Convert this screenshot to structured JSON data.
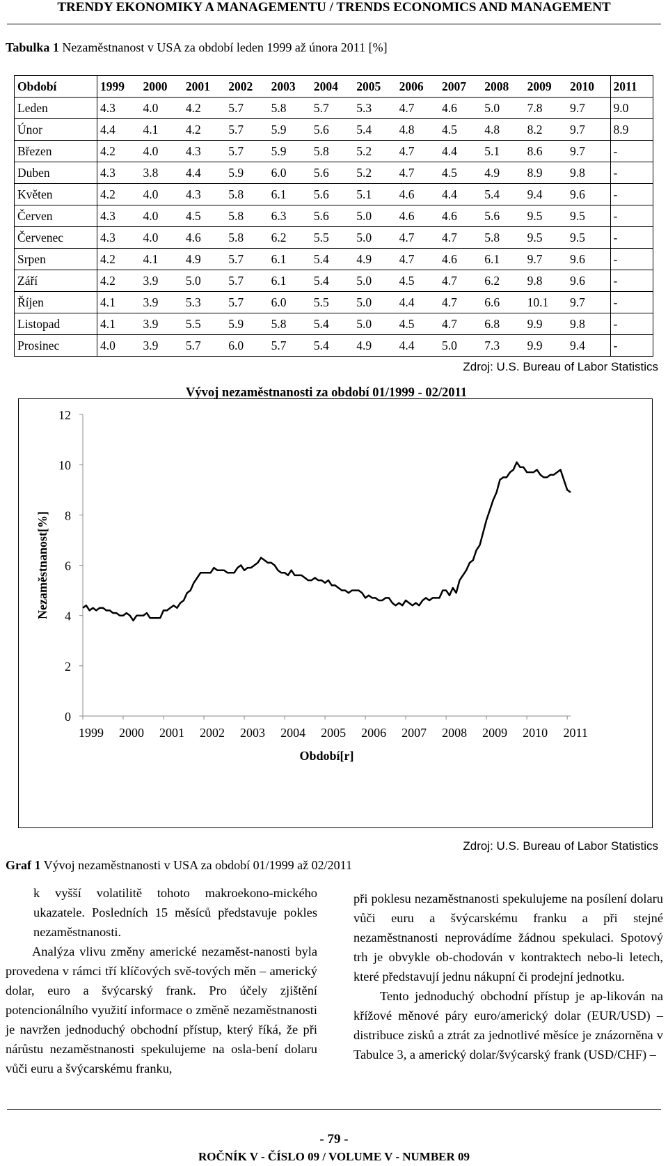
{
  "header": {
    "running_title": "TRENDY EKONOMIKY A MANAGEMENTU / TRENDS ECONOMICS AND MANAGEMENT"
  },
  "table": {
    "caption_label": "Tabulka 1",
    "caption_text": "Nezaměstnanost v USA za období leden 1999 až února 2011 [%]",
    "headers": [
      "Období",
      "1999",
      "2000",
      "2001",
      "2002",
      "2003",
      "2004",
      "2005",
      "2006",
      "2007",
      "2008",
      "2009",
      "2010",
      "2011"
    ],
    "rows": [
      [
        "Leden",
        "4.3",
        "4.0",
        "4.2",
        "5.7",
        "5.8",
        "5.7",
        "5.3",
        "4.7",
        "4.6",
        "5.0",
        "7.8",
        "9.7",
        "9.0"
      ],
      [
        "Únor",
        "4.4",
        "4.1",
        "4.2",
        "5.7",
        "5.9",
        "5.6",
        "5.4",
        "4.8",
        "4.5",
        "4.8",
        "8.2",
        "9.7",
        "8.9"
      ],
      [
        "Březen",
        "4.2",
        "4.0",
        "4.3",
        "5.7",
        "5.9",
        "5.8",
        "5.2",
        "4.7",
        "4.4",
        "5.1",
        "8.6",
        "9.7",
        "-"
      ],
      [
        "Duben",
        "4.3",
        "3.8",
        "4.4",
        "5.9",
        "6.0",
        "5.6",
        "5.2",
        "4.7",
        "4.5",
        "4.9",
        "8.9",
        "9.8",
        "-"
      ],
      [
        "Květen",
        "4.2",
        "4.0",
        "4.3",
        "5.8",
        "6.1",
        "5.6",
        "5.1",
        "4.6",
        "4.4",
        "5.4",
        "9.4",
        "9.6",
        "-"
      ],
      [
        "Červen",
        "4.3",
        "4.0",
        "4.5",
        "5.8",
        "6.3",
        "5.6",
        "5.0",
        "4.6",
        "4.6",
        "5.6",
        "9.5",
        "9.5",
        "-"
      ],
      [
        "Červenec",
        "4.3",
        "4.0",
        "4.6",
        "5.8",
        "6.2",
        "5.5",
        "5.0",
        "4.7",
        "4.7",
        "5.8",
        "9.5",
        "9.5",
        "-"
      ],
      [
        "Srpen",
        "4.2",
        "4.1",
        "4.9",
        "5.7",
        "6.1",
        "5.4",
        "4.9",
        "4.7",
        "4.6",
        "6.1",
        "9.7",
        "9.6",
        "-"
      ],
      [
        "Září",
        "4.2",
        "3.9",
        "5.0",
        "5.7",
        "6.1",
        "5.4",
        "5.0",
        "4.5",
        "4.7",
        "6.2",
        "9.8",
        "9.6",
        "-"
      ],
      [
        "Říjen",
        "4.1",
        "3.9",
        "5.3",
        "5.7",
        "6.0",
        "5.5",
        "5.0",
        "4.4",
        "4.7",
        "6.6",
        "10.1",
        "9.7",
        "-"
      ],
      [
        "Listopad",
        "4.1",
        "3.9",
        "5.5",
        "5.9",
        "5.8",
        "5.4",
        "5.0",
        "4.5",
        "4.7",
        "6.8",
        "9.9",
        "9.8",
        "-"
      ],
      [
        "Prosinec",
        "4.0",
        "3.9",
        "5.7",
        "6.0",
        "5.7",
        "5.4",
        "4.9",
        "4.4",
        "5.0",
        "7.3",
        "9.9",
        "9.4",
        "-"
      ]
    ],
    "source": "Zdroj: U.S. Bureau of Labor Statistics"
  },
  "chart_data": {
    "type": "line",
    "title": "Vývoj nezaměstnanosti za období 01/1999 - 02/2011",
    "xlabel": "Období[r]",
    "ylabel": "Nezaměstnanost[%]",
    "ylim": [
      0,
      12
    ],
    "yticks": [
      "0",
      "2",
      "4",
      "6",
      "8",
      "10",
      "12"
    ],
    "xticks": [
      "1999",
      "2000",
      "2001",
      "2002",
      "2003",
      "2004",
      "2005",
      "2006",
      "2007",
      "2008",
      "2009",
      "2010",
      "2011"
    ],
    "grid": false,
    "legend": "none",
    "line_color": "#000000",
    "series": [
      {
        "values": [
          4.3,
          4.4,
          4.2,
          4.3,
          4.2,
          4.3,
          4.3,
          4.2,
          4.2,
          4.1,
          4.1,
          4.0,
          4.0,
          4.1,
          4.0,
          3.8,
          4.0,
          4.0,
          4.0,
          4.1,
          3.9,
          3.9,
          3.9,
          3.9,
          4.2,
          4.2,
          4.3,
          4.4,
          4.3,
          4.5,
          4.6,
          4.9,
          5.0,
          5.3,
          5.5,
          5.7,
          5.7,
          5.7,
          5.7,
          5.9,
          5.8,
          5.8,
          5.8,
          5.7,
          5.7,
          5.7,
          5.9,
          6.0,
          5.8,
          5.9,
          5.9,
          6.0,
          6.1,
          6.3,
          6.2,
          6.1,
          6.1,
          6.0,
          5.8,
          5.7,
          5.7,
          5.6,
          5.8,
          5.6,
          5.6,
          5.6,
          5.5,
          5.4,
          5.4,
          5.5,
          5.4,
          5.4,
          5.3,
          5.4,
          5.2,
          5.2,
          5.1,
          5.0,
          5.0,
          4.9,
          5.0,
          5.0,
          5.0,
          4.9,
          4.7,
          4.8,
          4.7,
          4.7,
          4.6,
          4.6,
          4.7,
          4.7,
          4.5,
          4.4,
          4.5,
          4.4,
          4.6,
          4.5,
          4.4,
          4.5,
          4.4,
          4.6,
          4.7,
          4.6,
          4.7,
          4.7,
          4.7,
          5.0,
          5.0,
          4.8,
          5.1,
          4.9,
          5.4,
          5.6,
          5.8,
          6.1,
          6.2,
          6.6,
          6.8,
          7.3,
          7.8,
          8.2,
          8.6,
          8.9,
          9.4,
          9.5,
          9.5,
          9.7,
          9.8,
          10.1,
          9.9,
          9.9,
          9.7,
          9.7,
          9.7,
          9.8,
          9.6,
          9.5,
          9.5,
          9.6,
          9.6,
          9.7,
          9.8,
          9.4,
          9.0,
          8.9
        ]
      }
    ],
    "source": "Zdroj: U.S. Bureau of Labor Statistics"
  },
  "figure": {
    "caption_label": "Graf 1",
    "caption_text": "Vývoj nezaměstnanosti v USA za období 01/1999 až 02/2011"
  },
  "body": {
    "left": [
      {
        "type": "cont",
        "text": "k vyšší volatilitě tohoto makroekono-mického ukazatele. Posledních 15 měsíců představuje pokles nezaměstnanosti."
      },
      {
        "type": "para",
        "text": "Analýza vlivu změny americké nezaměst-nanosti byla provedena v rámci tří klíčových svě-tových měn – americký dolar, euro a švýcarský frank. Pro účely zjištění potencionálního využití informace o změně nezaměstnanosti je navržen jednoduchý obchodní přístup, který říká, že při nárůstu nezaměstnanosti spekulujeme na osla-bení dolaru vůči euru a švýcarskému franku,"
      }
    ],
    "right": [
      {
        "type": "cont",
        "text": "při poklesu nezaměstnanosti spekulujeme na posílení dolaru vůči euru a švýcarskému franku a při stejné nezaměstnanosti neprovádíme žádnou spekulaci. Spotový trh je obvykle ob-chodován v kontraktech nebo-li letech, které představují jednu nákupní či prodejní jednotku."
      },
      {
        "type": "para",
        "text": "Tento jednoduchý obchodní přístup je ap-likován na křížové měnové páry euro/americký dolar (EUR/USD) – distribuce zisků a ztrát za jednotlivé měsíce je znázorněna v Tabulce 3, a americký dolar/švýcarský frank (USD/CHF) –"
      }
    ]
  },
  "footer": {
    "page_number": "- 79 -",
    "volume": "ROČNÍK V - ČÍSLO 09 / VOLUME V - NUMBER 09"
  }
}
